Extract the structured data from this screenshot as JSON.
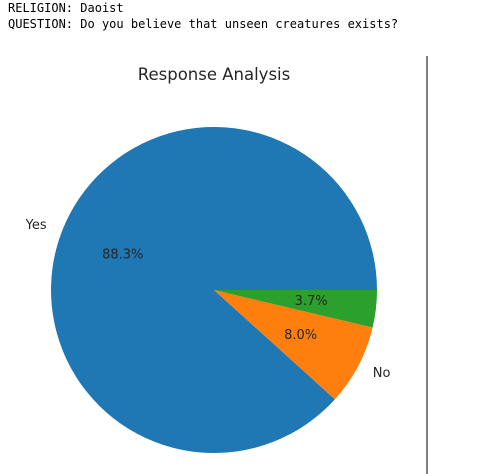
{
  "header": {
    "religion_label": "RELIGION:",
    "religion_value": "Daoist",
    "question_label": "QUESTION:",
    "question_value": "Do you believe that unseen creatures exists?"
  },
  "chart_data": {
    "type": "pie",
    "title": "Response Analysis",
    "slices": [
      {
        "label": "Yes",
        "value": 88.3,
        "pct_text": "88.3%",
        "color": "#1f77b4"
      },
      {
        "label": "No",
        "value": 8.0,
        "pct_text": "8.0%",
        "color": "#ff7f0e"
      },
      {
        "label": "",
        "value": 3.7,
        "pct_text": "3.7%",
        "color": "#2ca02c"
      }
    ]
  }
}
